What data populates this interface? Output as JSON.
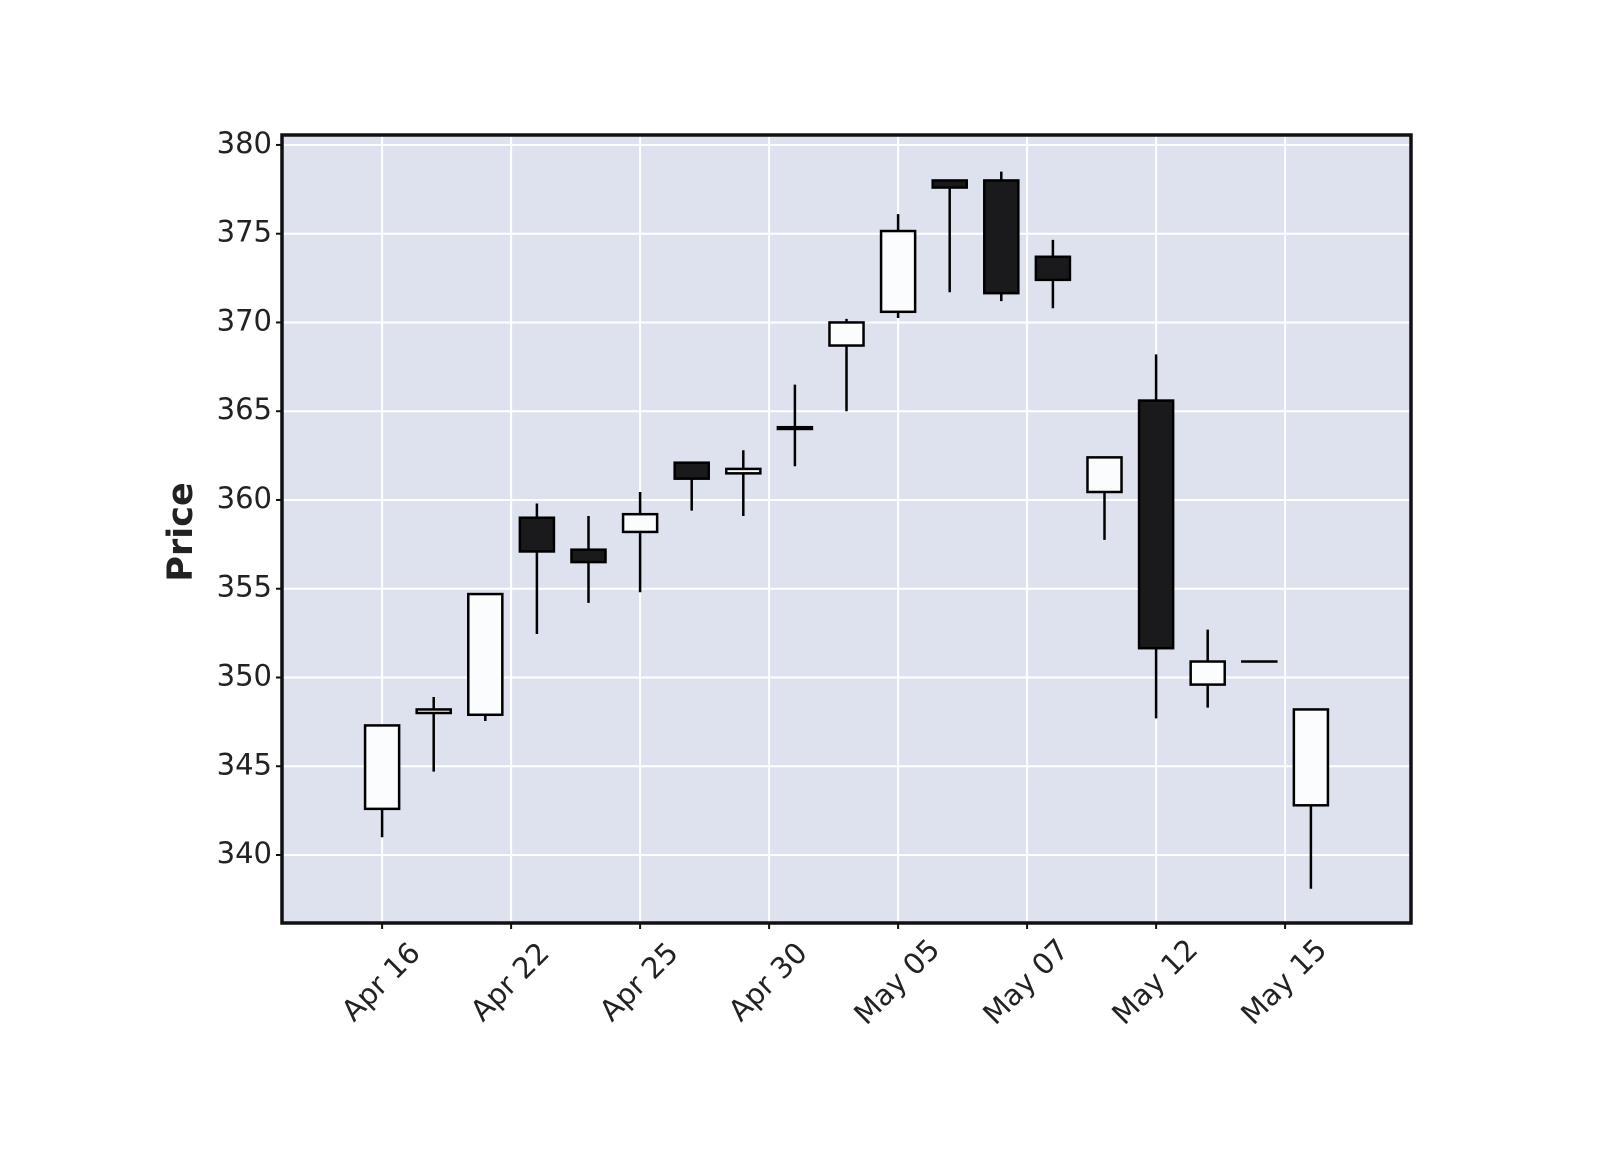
{
  "chart_data": {
    "type": "candlestick",
    "ylabel": "Price",
    "x": [
      0,
      1,
      2,
      3,
      4,
      5,
      6,
      7,
      8,
      9,
      10,
      11,
      12,
      13,
      14,
      15,
      16,
      17,
      18
    ],
    "open": [
      342.6,
      348.0,
      347.9,
      359.0,
      357.2,
      358.2,
      362.1,
      361.5,
      364.1,
      368.7,
      370.6,
      378.0,
      378.0,
      373.7,
      360.45,
      365.6,
      349.6,
      350.9,
      342.8
    ],
    "high": [
      347.3,
      348.9,
      354.7,
      359.8,
      359.1,
      360.45,
      362.1,
      362.8,
      366.5,
      370.2,
      376.1,
      378.0,
      378.5,
      374.65,
      362.4,
      368.2,
      352.7,
      350.9,
      348.2
    ],
    "low": [
      341.0,
      344.7,
      347.55,
      352.45,
      354.2,
      354.8,
      359.4,
      359.1,
      361.9,
      365.0,
      370.25,
      371.7,
      371.2,
      370.8,
      357.75,
      347.7,
      348.3,
      350.9,
      338.1
    ],
    "close": [
      347.3,
      348.2,
      354.7,
      357.1,
      356.5,
      359.2,
      361.2,
      361.75,
      364.0,
      370.0,
      375.15,
      377.6,
      371.65,
      372.4,
      362.4,
      351.65,
      350.9,
      350.9,
      348.2
    ],
    "up_color": "#fbfcfe",
    "down_color": "#1a1a1c",
    "edge_color": "#000000",
    "background": "#dde2ee",
    "xlim": [
      -1.94,
      19.94
    ],
    "ylim": [
      336.17,
      380.56
    ],
    "yticks": [
      340,
      345,
      350,
      355,
      360,
      365,
      370,
      375,
      380
    ],
    "xticks": [
      {
        "value": 0,
        "label": "Apr 16"
      },
      {
        "value": 2.5,
        "label": "Apr 22"
      },
      {
        "value": 5,
        "label": "Apr 25"
      },
      {
        "value": 7.5,
        "label": "Apr 30"
      },
      {
        "value": 10,
        "label": "May 05"
      },
      {
        "value": 12.5,
        "label": "May 07"
      },
      {
        "value": 15,
        "label": "May 12"
      },
      {
        "value": 17.5,
        "label": "May 15"
      }
    ],
    "grid": true
  }
}
